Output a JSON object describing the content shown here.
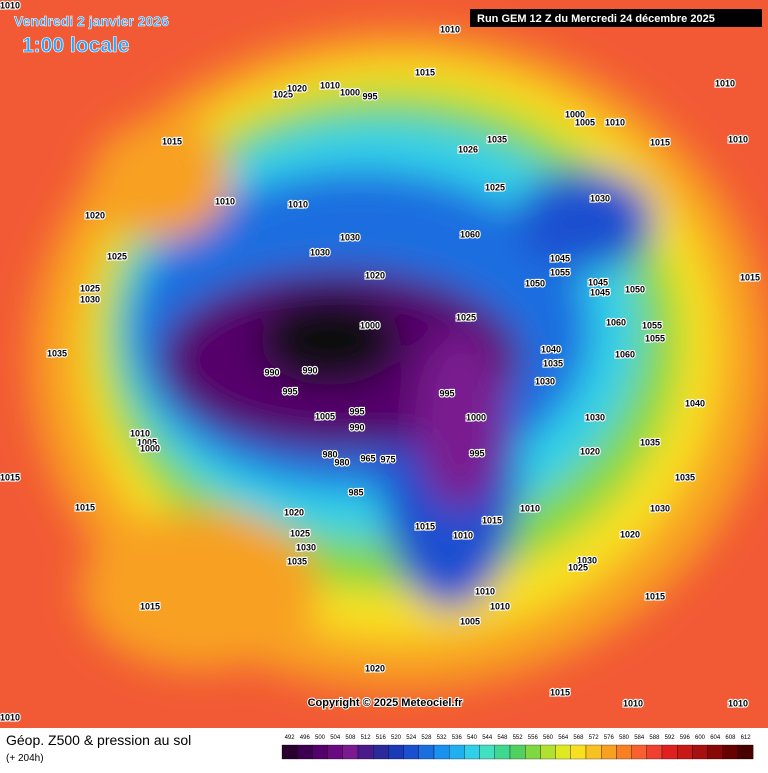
{
  "header": {
    "date": "Vendredi 2 janvier 2026",
    "time": "1:00 locale",
    "run": "Run GEM 12 Z du Mercredi 24 décembre 2025"
  },
  "footer": {
    "title": "Géop. Z500 & pression au sol",
    "lead": "(+ 204h)",
    "copyright": "Copyright © 2025 Meteociel.fr"
  },
  "scale": {
    "labels": [
      492,
      496,
      500,
      504,
      508,
      512,
      516,
      520,
      524,
      528,
      532,
      536,
      540,
      544,
      548,
      552,
      556,
      560,
      564,
      568,
      572,
      576,
      580,
      584,
      588,
      592,
      596,
      600,
      604,
      608,
      612
    ],
    "colors": [
      "#2a0030",
      "#3d0050",
      "#55006a",
      "#6a0a80",
      "#7a1a90",
      "#4a1a8a",
      "#2a2a9a",
      "#1a3ab8",
      "#1a50d0",
      "#1a6ee0",
      "#1a90f0",
      "#20b0f0",
      "#30d0e8",
      "#40e0c0",
      "#40d890",
      "#50d060",
      "#80d840",
      "#b0e030",
      "#e0e820",
      "#f8e020",
      "#f8c020",
      "#f8a020",
      "#f88020",
      "#f86030",
      "#f04030",
      "#e02020",
      "#c81818",
      "#a81010",
      "#880808",
      "#680000",
      "#480000"
    ]
  },
  "pressure_labels": [
    1010,
    1010,
    1015,
    1025,
    1020,
    1010,
    1000,
    995,
    1015,
    1010,
    1010,
    1020,
    1025,
    1025,
    1030,
    1035,
    1030,
    1030,
    1020,
    1000,
    990,
    990,
    995,
    1005,
    995,
    990,
    980,
    980,
    965,
    975,
    985,
    995,
    1000,
    995,
    1010,
    1005,
    1000,
    1015,
    1015,
    1020,
    1025,
    1030,
    1035,
    1015,
    1015,
    1015,
    1010,
    1010,
    1020,
    1015,
    1010,
    1010,
    1010,
    1010,
    1010,
    1015,
    1040,
    1035,
    1030,
    1020,
    1015,
    1020,
    1030,
    1035,
    1030,
    1035,
    1040,
    1060,
    1055,
    1055,
    1060,
    1050,
    1045,
    1045,
    1055,
    1045,
    1050,
    1030,
    1025,
    1026,
    1035,
    1000,
    1005,
    1010,
    1015,
    1060,
    1025,
    1010,
    1010,
    1005,
    1030,
    1025
  ]
}
